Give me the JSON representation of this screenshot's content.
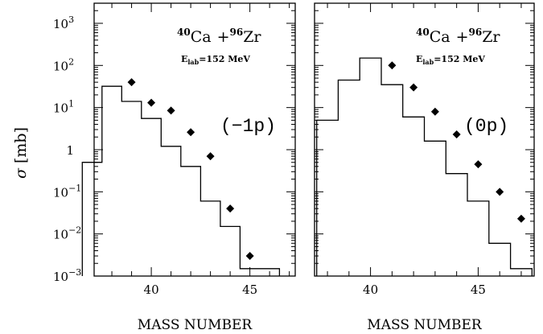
{
  "colors": {
    "foreground": "#000000",
    "background": "#ffffff"
  },
  "ylabel_symbol": "σ",
  "ylabel_unit": "[mb]",
  "y_tick_labels": [
    {
      "base": "10",
      "exp": "3",
      "value": 1000
    },
    {
      "base": "10",
      "exp": "2",
      "value": 100
    },
    {
      "base": "10",
      "exp": "1",
      "value": 10
    },
    {
      "base": "1",
      "exp": "",
      "value": 1
    },
    {
      "base": "10",
      "exp": "−1",
      "value": 0.1
    },
    {
      "base": "10",
      "exp": "−2",
      "value": 0.01
    },
    {
      "base": "10",
      "exp": "−3",
      "value": 0.001
    }
  ],
  "chart_data": [
    {
      "type": "step-histogram-with-points",
      "y_scale": "log",
      "ylim": [
        0.001,
        3000
      ],
      "xlim": [
        37.1,
        47.3
      ],
      "xlabel": "MASS NUMBER",
      "x_tick_labels": [
        "40",
        "45"
      ],
      "reaction": {
        "mass1": "40",
        "elem1": "Ca",
        "plus": "+",
        "mass2": "96",
        "elem2": "Zr"
      },
      "energy": {
        "prefix": "E",
        "sub": "lab",
        "value": "=152 MeV"
      },
      "channel_label": "(−1p)",
      "histogram": {
        "x": [
          37,
          38,
          39,
          40,
          41,
          42,
          43,
          44,
          45,
          46
        ],
        "y": [
          0.5,
          32,
          14,
          5.5,
          1.2,
          0.4,
          0.06,
          0.015,
          0.0015,
          0.0015
        ]
      },
      "points": {
        "x": [
          39,
          40,
          41,
          42,
          43,
          44,
          45
        ],
        "y": [
          40,
          13,
          8.5,
          2.6,
          0.7,
          0.04,
          0.003
        ]
      }
    },
    {
      "type": "step-histogram-with-points",
      "y_scale": "log",
      "ylim": [
        0.001,
        3000
      ],
      "xlim": [
        37.4,
        47.6
      ],
      "xlabel": "MASS NUMBER",
      "x_tick_labels": [
        "40",
        "45"
      ],
      "reaction": {
        "mass1": "40",
        "elem1": "Ca",
        "plus": "+",
        "mass2": "96",
        "elem2": "Zr"
      },
      "energy": {
        "prefix": "E",
        "sub": "lab",
        "value": "=152 MeV"
      },
      "channel_label": "(0p)",
      "histogram": {
        "x": [
          38,
          39,
          40,
          41,
          42,
          43,
          44,
          45,
          46,
          47
        ],
        "y": [
          5,
          45,
          150,
          35,
          6,
          1.6,
          0.27,
          0.06,
          0.006,
          0.0015
        ]
      },
      "points": {
        "x": [
          41,
          42,
          43,
          44,
          45,
          46,
          47
        ],
        "y": [
          100,
          30,
          8,
          2.3,
          0.45,
          0.1,
          0.023
        ]
      }
    }
  ]
}
